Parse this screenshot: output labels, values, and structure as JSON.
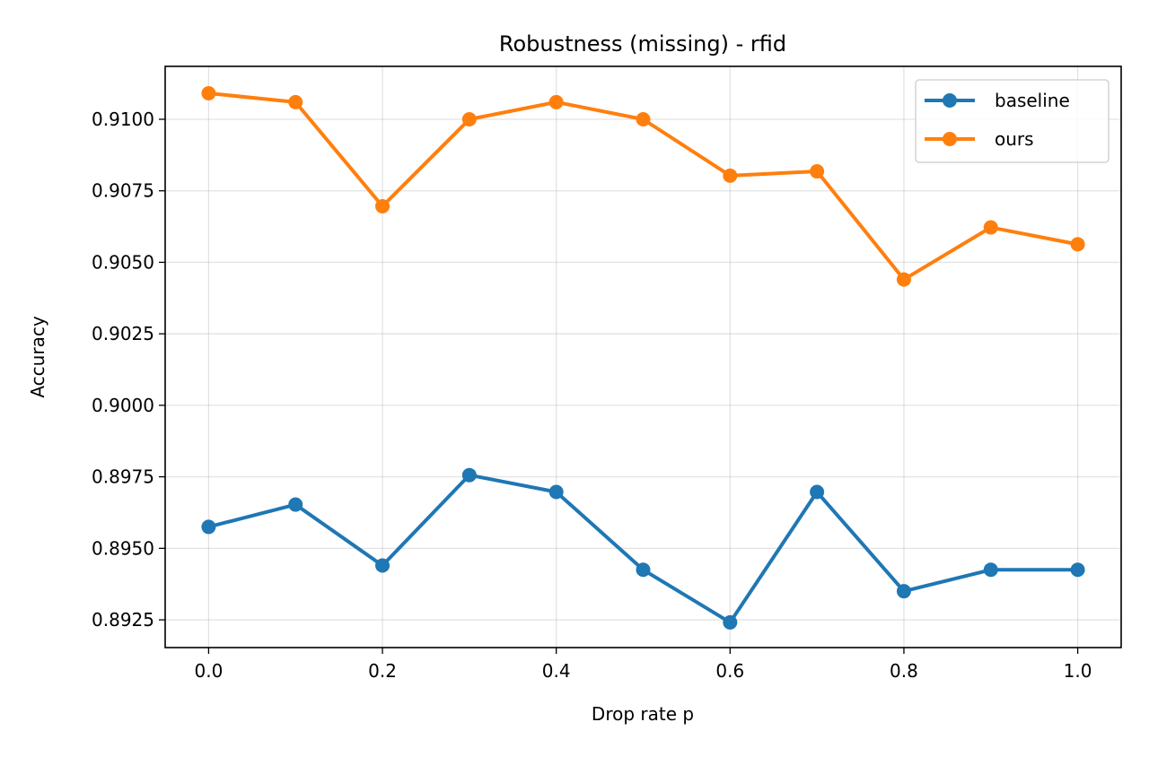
{
  "chart_data": {
    "type": "line",
    "title": "Robustness (missing) - rfid",
    "xlabel": "Drop rate p",
    "ylabel": "Accuracy",
    "x": [
      0.0,
      0.1,
      0.2,
      0.3,
      0.4,
      0.5,
      0.6,
      0.7,
      0.8,
      0.9,
      1.0
    ],
    "xlim": [
      -0.05,
      1.05
    ],
    "ylim": [
      0.89153,
      0.91185
    ],
    "xticks": [
      "0.0",
      "0.2",
      "0.4",
      "0.6",
      "0.8",
      "1.0"
    ],
    "yticks": [
      "0.8925",
      "0.8950",
      "0.8975",
      "0.9000",
      "0.9025",
      "0.9050",
      "0.9075",
      "0.9100"
    ],
    "grid": true,
    "legend_position": "top-right",
    "series": [
      {
        "name": "baseline",
        "color": "#1f77b4",
        "values": [
          0.89575,
          0.89653,
          0.8944,
          0.89756,
          0.89697,
          0.89425,
          0.89241,
          0.89697,
          0.8935,
          0.89425,
          0.89425
        ]
      },
      {
        "name": "ours",
        "color": "#ff7f0e",
        "values": [
          0.91091,
          0.9106,
          0.90696,
          0.91,
          0.9106,
          0.91,
          0.90803,
          0.90818,
          0.9044,
          0.90622,
          0.90563
        ]
      }
    ]
  }
}
